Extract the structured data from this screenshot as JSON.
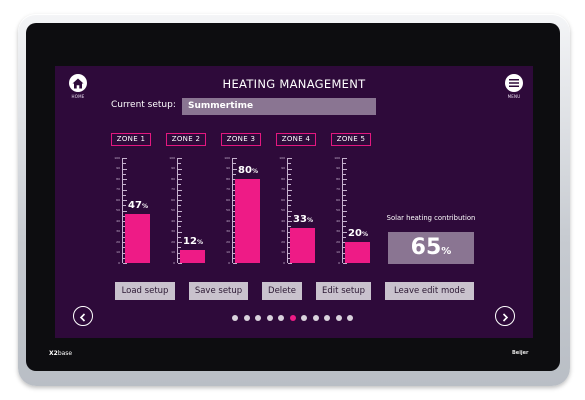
{
  "device": {
    "brand_bold": "X2",
    "brand_light": "base",
    "maker": "Beijer"
  },
  "header": {
    "title": "HEATING MANAGEMENT",
    "home_label": "HOME",
    "menu_label": "MENU"
  },
  "setup": {
    "label": "Current setup:",
    "value": "Summertime"
  },
  "zones": [
    {
      "name": "ZONE 1",
      "value": 47,
      "value_text": "47",
      "unit": "%"
    },
    {
      "name": "ZONE 2",
      "value": 12,
      "value_text": "12",
      "unit": "%"
    },
    {
      "name": "ZONE 3",
      "value": 80,
      "value_text": "80",
      "unit": "%"
    },
    {
      "name": "ZONE 4",
      "value": 33,
      "value_text": "33",
      "unit": "%"
    },
    {
      "name": "ZONE 5",
      "value": 20,
      "value_text": "20",
      "unit": "%"
    }
  ],
  "scale": {
    "min": 0,
    "max": 100,
    "step": 10,
    "labels": [
      "100",
      "90",
      "80",
      "70",
      "60",
      "50",
      "40",
      "30",
      "20",
      "10",
      "0"
    ]
  },
  "solar": {
    "label": "Solar heating contribution",
    "value": "65",
    "unit": "%"
  },
  "buttons": {
    "load": "Load setup",
    "save": "Save setup",
    "delete": "Delete",
    "edit": "Edit setup",
    "leave": "Leave edit mode"
  },
  "pagination": {
    "count": 11,
    "active_index": 5
  },
  "colors": {
    "screen_bg": "#2e0a3a",
    "accent": "#ee1b86",
    "field_bg": "#8a7592",
    "button_bg": "#c9c2cd"
  },
  "icons": {
    "home": "home-icon",
    "menu": "hamburger-menu-icon",
    "prev": "chevron-left-icon",
    "next": "chevron-right-icon"
  }
}
